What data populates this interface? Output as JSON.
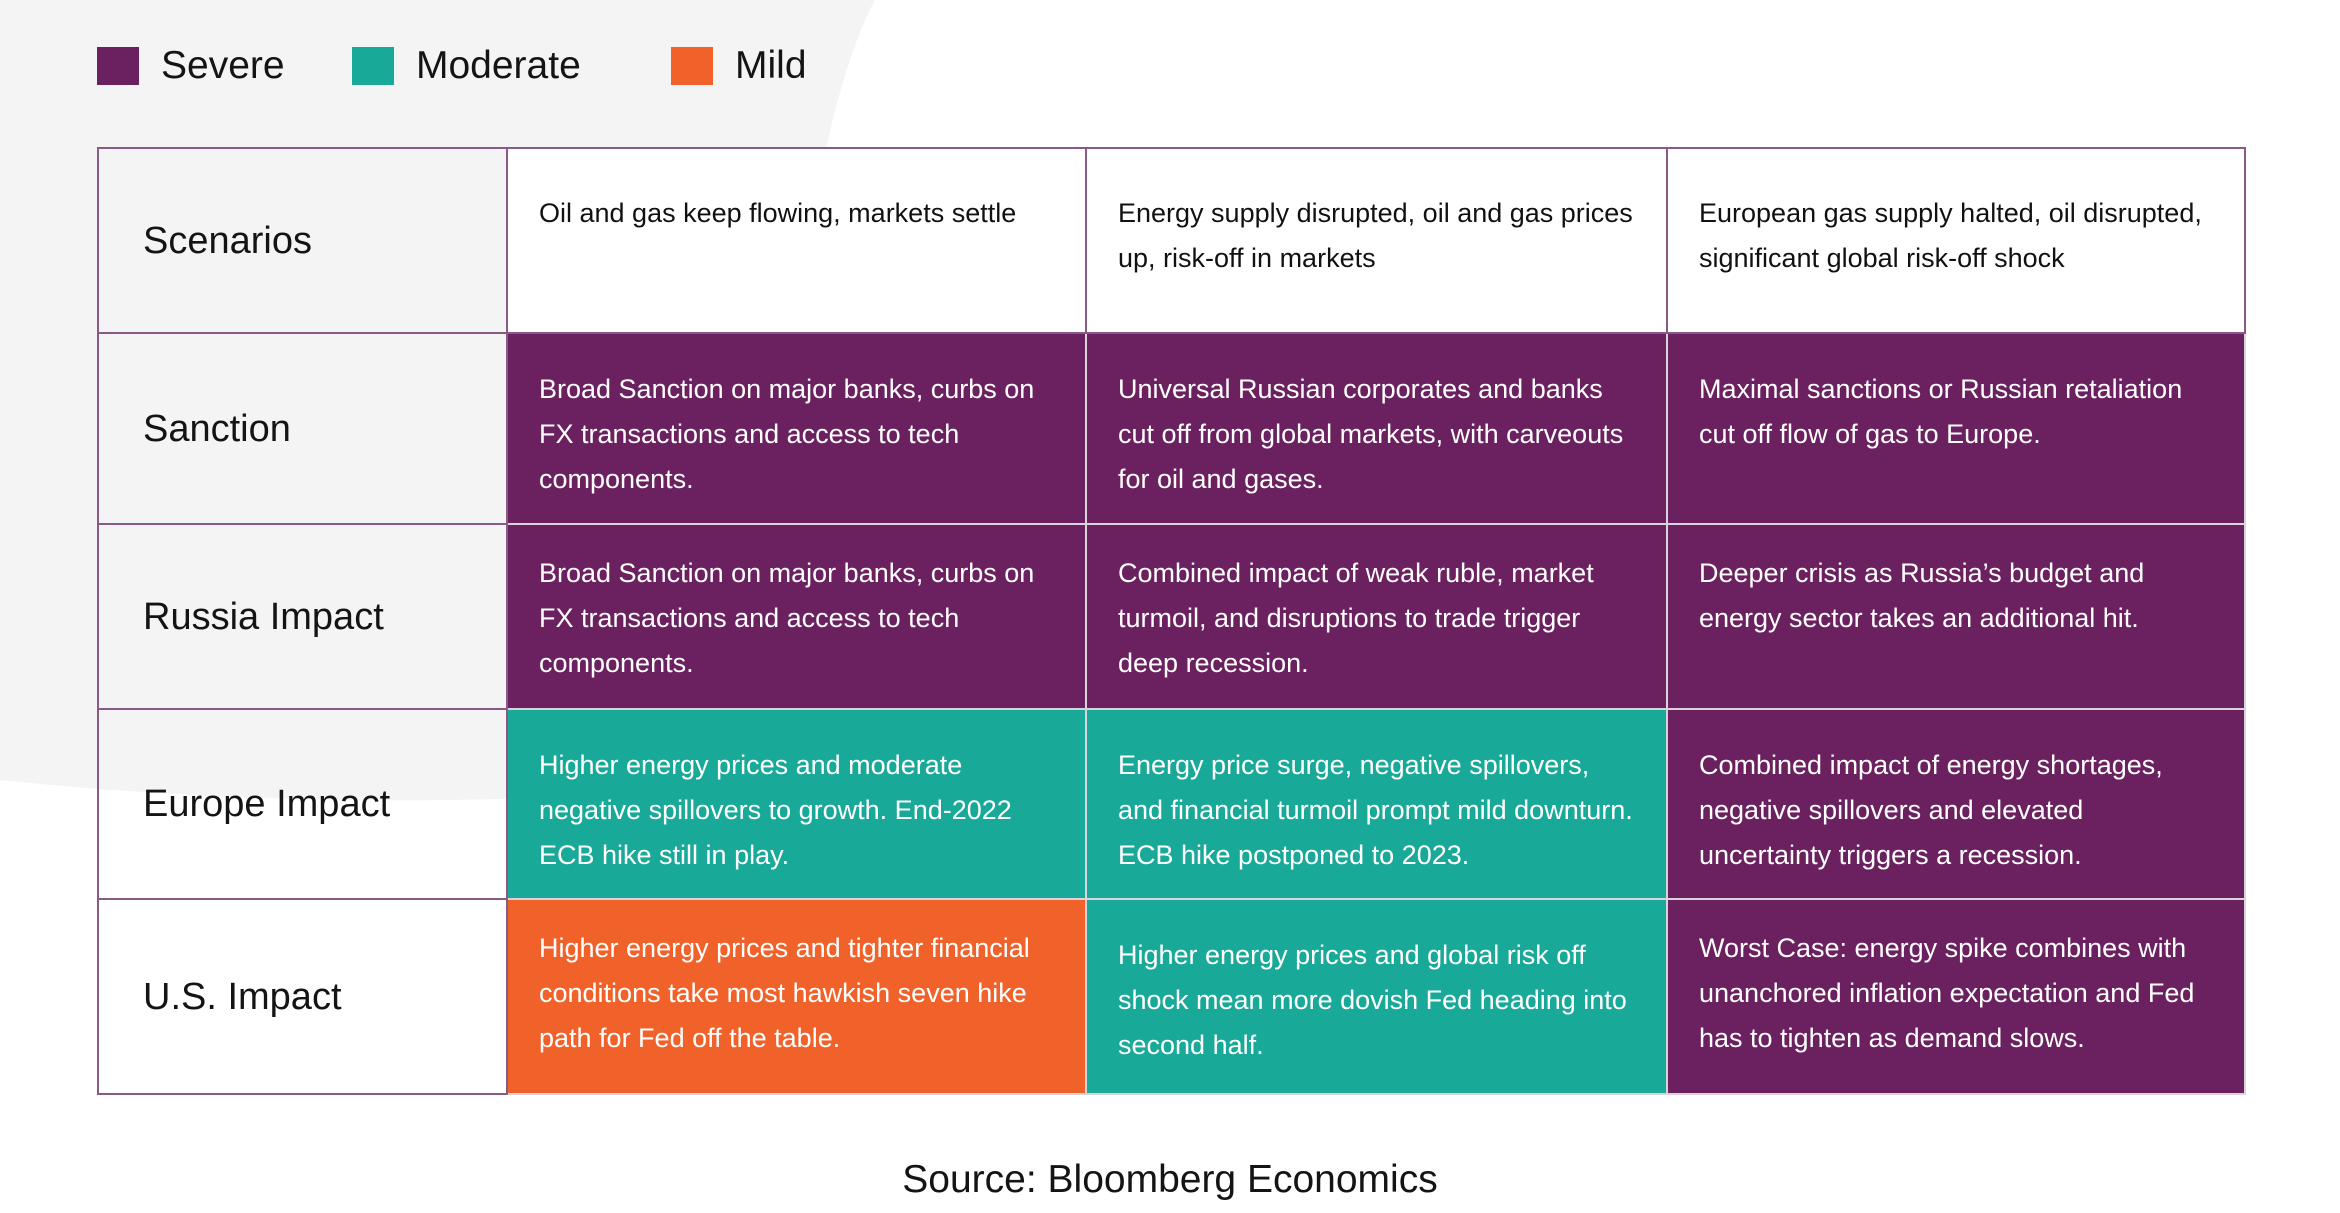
{
  "chart_data": {
    "type": "table",
    "legend": [
      {
        "label": "Severe",
        "color": "#6b2160"
      },
      {
        "label": "Moderate",
        "color": "#19a999"
      },
      {
        "label": "Mild",
        "color": "#f0622a"
      }
    ],
    "header": {
      "label": "Scenarios",
      "columns": [
        "Oil and gas keep flowing, markets settle",
        "Energy supply disrupted, oil and gas prices up, risk-off in markets",
        "European gas supply halted, oil disrupted, significant global risk-off shock"
      ]
    },
    "rows": [
      {
        "label": "Sanction",
        "cells": [
          {
            "text": "Broad Sanction on major banks, curbs on FX transactions and access to tech components.",
            "severity": "Severe"
          },
          {
            "text": "Universal Russian corporates and banks cut off from global markets, with carveouts for oil and gases.",
            "severity": "Severe"
          },
          {
            "text": "Maximal sanctions or Russian retaliation cut off flow of gas to Europe.",
            "severity": "Severe"
          }
        ]
      },
      {
        "label": "Russia Impact",
        "cells": [
          {
            "text": "Broad Sanction on major banks, curbs on FX transactions and access to tech components.",
            "severity": "Severe"
          },
          {
            "text": "Combined impact of weak ruble, market turmoil, and disruptions to trade trigger deep recession.",
            "severity": "Severe"
          },
          {
            "text": "Deeper crisis as Russia’s budget and energy sector takes an additional hit.",
            "severity": "Severe"
          }
        ]
      },
      {
        "label": "Europe Impact",
        "cells": [
          {
            "text": "Higher energy prices and moderate negative spillovers to growth. End-2022 ECB hike still in play.",
            "severity": "Moderate"
          },
          {
            "text": "Energy price surge, negative spillovers, and financial turmoil prompt mild downturn. ECB hike postponed to 2023.",
            "severity": "Moderate"
          },
          {
            "text": "Combined impact of energy shortages, negative spillovers and elevated uncertainty triggers a recession.",
            "severity": "Severe"
          }
        ]
      },
      {
        "label": "U.S. Impact",
        "cells": [
          {
            "text": "Higher energy prices and tighter financial conditions take most hawkish seven hike path for Fed off the table.",
            "severity": "Mild"
          },
          {
            "text": "Higher energy prices and global risk off shock mean more dovish Fed heading into second half.",
            "severity": "Moderate"
          },
          {
            "text": "Worst Case: energy spike combines with unanchored inflation expectation and Fed has to tighten as demand slows.",
            "severity": "Severe"
          }
        ]
      }
    ],
    "source": "Source: Bloomberg Economics"
  }
}
